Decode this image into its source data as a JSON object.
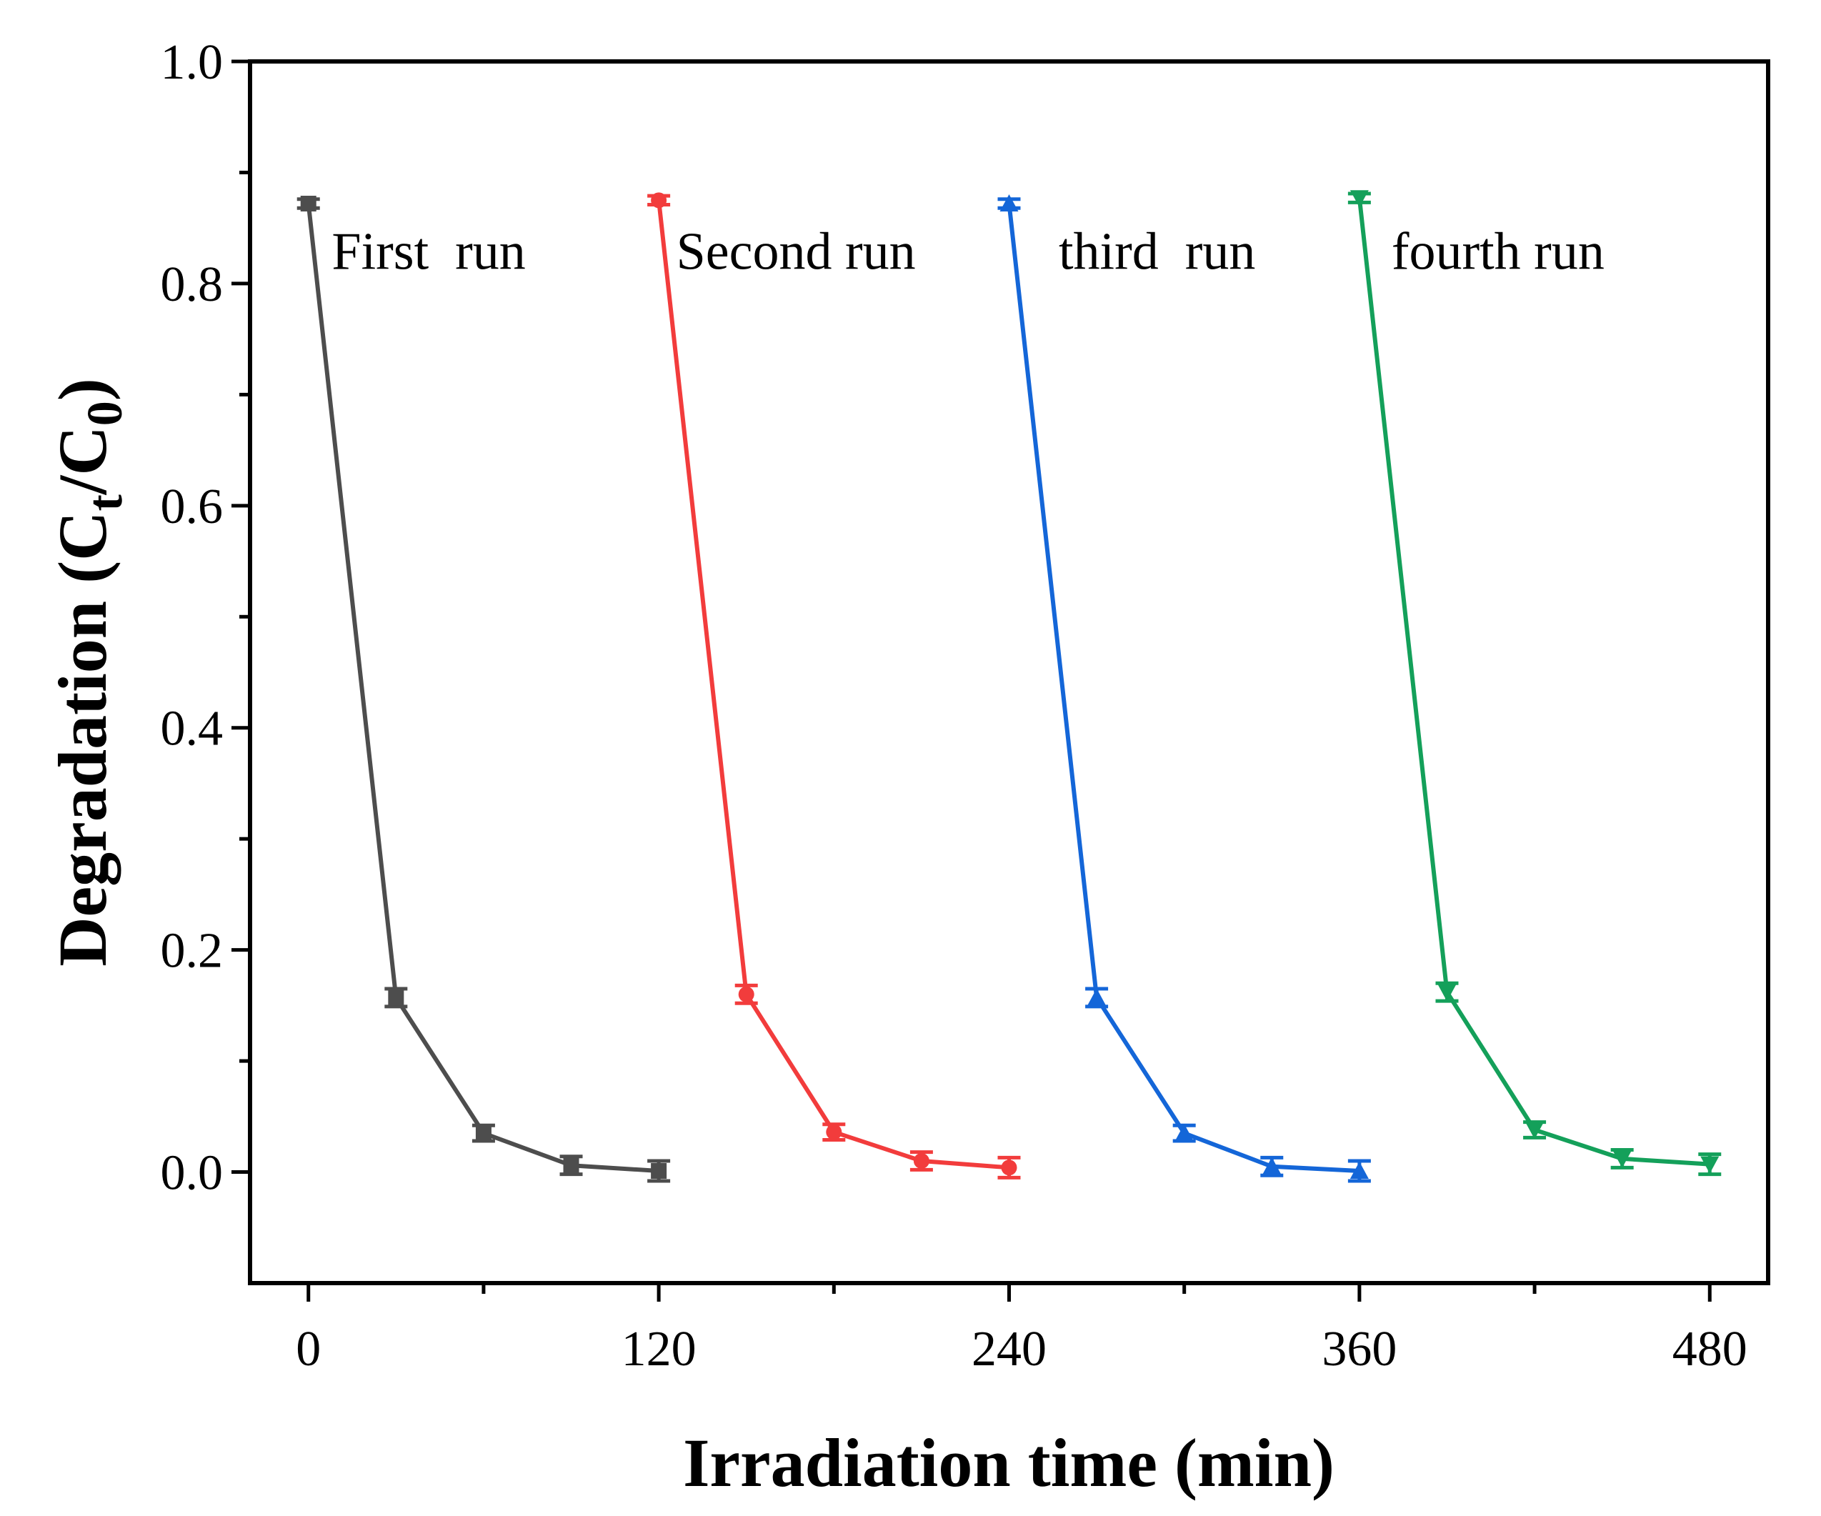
{
  "chart_data": {
    "type": "line",
    "title": "",
    "xlabel": "Irradiation time (min)",
    "ylabel": {
      "prefix": "Degradation (C",
      "sub1": "t",
      "mid": "/C",
      "sub2": "0",
      "suffix": ")"
    },
    "xlim": [
      -20,
      500
    ],
    "ylim": [
      -0.1,
      1.0
    ],
    "x_ticks": [
      0,
      120,
      240,
      360,
      480
    ],
    "x_minor_ticks": [
      60,
      180,
      300,
      420
    ],
    "y_ticks": [
      "0.0",
      "0.2",
      "0.4",
      "0.6",
      "0.8",
      "1.0"
    ],
    "y_minor_ticks": [
      0.1,
      0.3,
      0.5,
      0.7,
      0.9
    ],
    "series": [
      {
        "name": "First  run",
        "color": "#4d4d4d",
        "marker": "square",
        "x": [
          0,
          30,
          60,
          90,
          120
        ],
        "y": [
          0.872,
          0.157,
          0.035,
          0.006,
          0.001
        ],
        "err": [
          0.004,
          0.008,
          0.007,
          0.008,
          0.009
        ],
        "label_at": [
          8,
          0.83
        ]
      },
      {
        "name": "Second run",
        "color": "#f23c3c",
        "marker": "circle",
        "x": [
          120,
          150,
          180,
          210,
          240
        ],
        "y": [
          0.875,
          0.16,
          0.036,
          0.01,
          0.004
        ],
        "err": [
          0.004,
          0.008,
          0.007,
          0.008,
          0.009
        ],
        "label_at": [
          126,
          0.83
        ]
      },
      {
        "name": "third  run",
        "color": "#1466d8",
        "marker": "triangle-up",
        "x": [
          240,
          270,
          300,
          330,
          360
        ],
        "y": [
          0.872,
          0.157,
          0.035,
          0.005,
          0.001
        ],
        "err": [
          0.004,
          0.008,
          0.007,
          0.008,
          0.009
        ],
        "label_at": [
          257,
          0.83
        ]
      },
      {
        "name": "fourth run",
        "color": "#14a05a",
        "marker": "triangle-down",
        "x": [
          360,
          390,
          420,
          450,
          480
        ],
        "y": [
          0.877,
          0.162,
          0.038,
          0.012,
          0.007
        ],
        "err": [
          0.004,
          0.008,
          0.007,
          0.008,
          0.009
        ],
        "label_at": [
          371,
          0.83
        ]
      }
    ]
  }
}
